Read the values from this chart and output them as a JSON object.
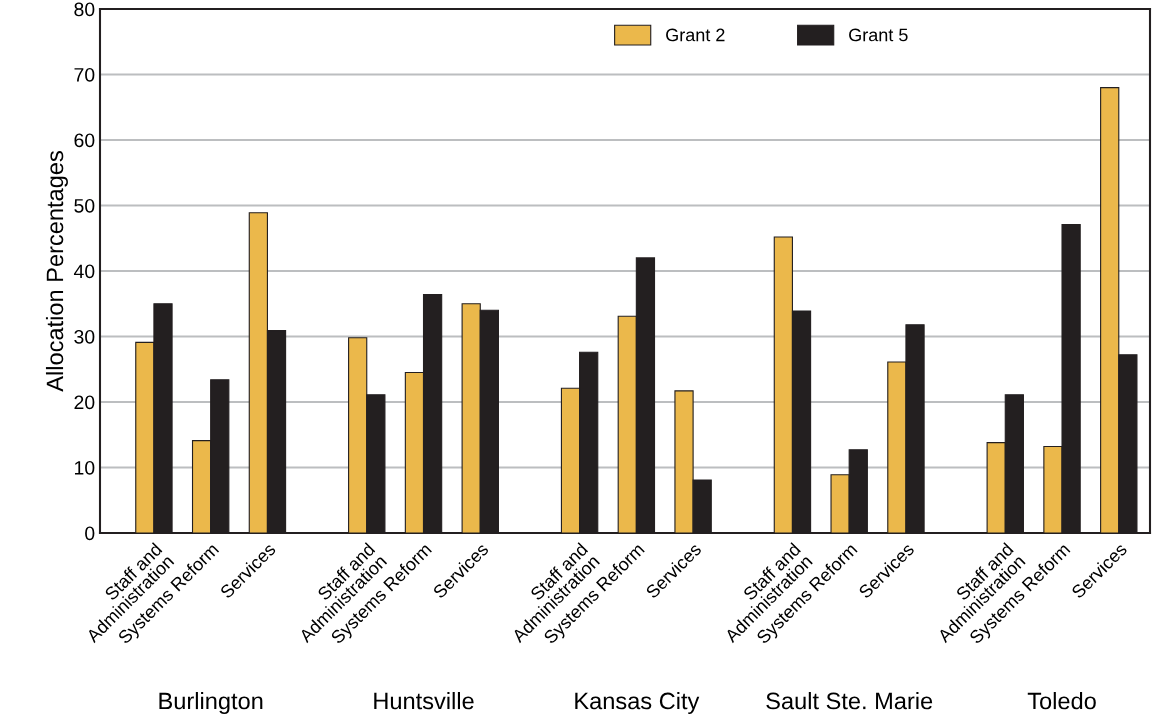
{
  "chart_data": {
    "type": "bar",
    "ylabel": "Allocation Percentages",
    "categories": [
      "Staff and\nAdministration",
      "Systems Reform",
      "Services",
      "Staff and\nAdministration",
      "Systems Reform",
      "Services",
      "Staff and\nAdministration",
      "Systems Reform",
      "Services",
      "Staff and\nAdministration",
      "Systems Reform",
      "Services",
      "Staff and\nAdministration",
      "Systems Reform",
      "Services"
    ],
    "series": [
      {
        "name": "Grant 2",
        "color": "#ebb84b",
        "values": [
          29.1,
          14.1,
          48.9,
          29.8,
          24.5,
          35.0,
          22.1,
          33.1,
          21.7,
          45.2,
          8.9,
          26.1,
          13.8,
          13.2,
          68.0
        ]
      },
      {
        "name": "Grant 5",
        "color": "#231f20",
        "values": [
          35.0,
          23.4,
          30.9,
          21.1,
          36.4,
          34.0,
          27.6,
          42.0,
          8.1,
          33.9,
          12.7,
          31.8,
          21.1,
          47.1,
          27.2
        ]
      }
    ],
    "ylim": [
      0,
      80
    ],
    "yticks": [
      0,
      10,
      20,
      30,
      40,
      50,
      60,
      70,
      80
    ],
    "grid": "y",
    "legend": "top",
    "annotations": [
      "Burlington",
      "Huntsville",
      "Kansas City",
      "Sault Ste. Marie",
      "Toledo"
    ]
  }
}
